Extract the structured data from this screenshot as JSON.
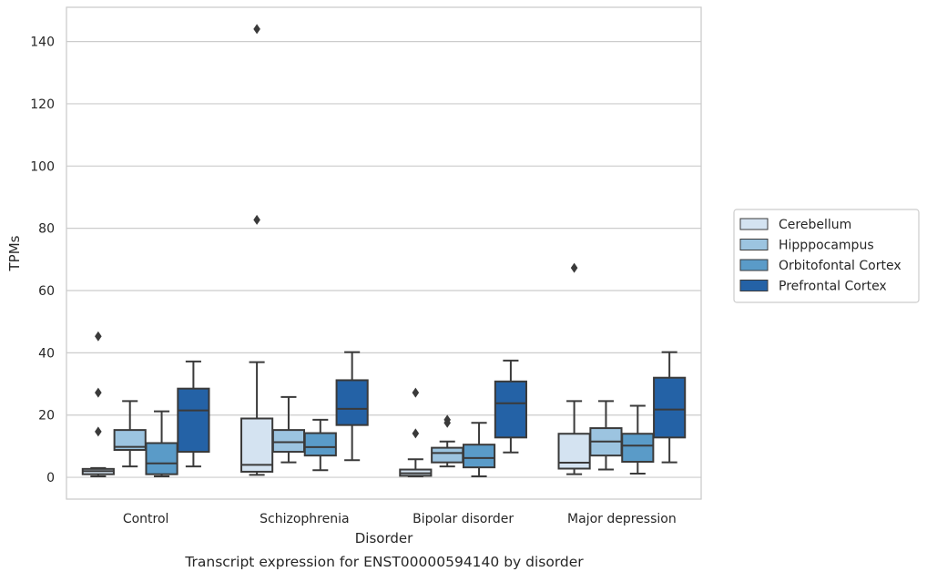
{
  "chart_data": {
    "type": "box",
    "title": "",
    "caption": "Transcript expression for ENST00000594140 by disorder",
    "xlabel": "Disorder",
    "ylabel": "TPMs",
    "ylim": [
      -7,
      151
    ],
    "yticks": [
      0,
      20,
      40,
      60,
      80,
      100,
      120,
      140
    ],
    "grid": "horizontal",
    "legend_position": "right",
    "categories": [
      "Control",
      "Schizophrenia",
      "Bipolar disorder",
      "Major depression"
    ],
    "series": [
      {
        "name": "Cerebellum",
        "color": "#d4e3f1",
        "boxes": [
          {
            "whisker_low": 0.3,
            "q1": 1.0,
            "median": 2.0,
            "q3": 2.7,
            "whisker_high": 3.0,
            "outliers": [
              14.7,
              27.2,
              45.3
            ]
          },
          {
            "whisker_low": 0.8,
            "q1": 1.8,
            "median": 4.0,
            "q3": 18.9,
            "whisker_high": 37.0,
            "outliers": [
              82.7,
              144.0
            ]
          },
          {
            "whisker_low": 0.3,
            "q1": 0.5,
            "median": 1.3,
            "q3": 2.5,
            "whisker_high": 5.8,
            "outliers": [
              14.1,
              27.2
            ]
          },
          {
            "whisker_low": 1.0,
            "q1": 2.8,
            "median": 4.7,
            "q3": 14.0,
            "whisker_high": 24.5,
            "outliers": [
              67.3
            ]
          }
        ]
      },
      {
        "name": "Hipppocampus",
        "color": "#9cc4e0",
        "boxes": [
          {
            "whisker_low": 3.5,
            "q1": 8.8,
            "median": 9.8,
            "q3": 15.2,
            "whisker_high": 24.5,
            "outliers": []
          },
          {
            "whisker_low": 4.8,
            "q1": 8.2,
            "median": 11.3,
            "q3": 15.2,
            "whisker_high": 25.8,
            "outliers": []
          },
          {
            "whisker_low": 3.5,
            "q1": 4.8,
            "median": 7.8,
            "q3": 9.5,
            "whisker_high": 11.5,
            "outliers": [
              17.5,
              18.5
            ]
          },
          {
            "whisker_low": 2.5,
            "q1": 7.0,
            "median": 11.5,
            "q3": 15.8,
            "whisker_high": 24.5,
            "outliers": []
          }
        ]
      },
      {
        "name": "Orbitofontal Cortex",
        "color": "#5a9bc8",
        "boxes": [
          {
            "whisker_low": 0.3,
            "q1": 1.0,
            "median": 4.5,
            "q3": 11.0,
            "whisker_high": 21.2,
            "outliers": []
          },
          {
            "whisker_low": 2.3,
            "q1": 7.0,
            "median": 9.7,
            "q3": 14.2,
            "whisker_high": 18.5,
            "outliers": []
          },
          {
            "whisker_low": 0.3,
            "q1": 3.2,
            "median": 6.2,
            "q3": 10.5,
            "whisker_high": 17.5,
            "outliers": []
          },
          {
            "whisker_low": 1.2,
            "q1": 5.0,
            "median": 10.2,
            "q3": 14.0,
            "whisker_high": 23.0,
            "outliers": []
          }
        ]
      },
      {
        "name": "Prefrontal Cortex",
        "color": "#2462a6",
        "boxes": [
          {
            "whisker_low": 3.5,
            "q1": 8.2,
            "median": 21.5,
            "q3": 28.5,
            "whisker_high": 37.2,
            "outliers": []
          },
          {
            "whisker_low": 5.5,
            "q1": 16.8,
            "median": 22.0,
            "q3": 31.2,
            "whisker_high": 40.2,
            "outliers": []
          },
          {
            "whisker_low": 8.0,
            "q1": 12.8,
            "median": 23.8,
            "q3": 30.8,
            "whisker_high": 37.5,
            "outliers": []
          },
          {
            "whisker_low": 4.8,
            "q1": 12.8,
            "median": 21.8,
            "q3": 32.0,
            "whisker_high": 40.2,
            "outliers": []
          }
        ]
      }
    ]
  }
}
